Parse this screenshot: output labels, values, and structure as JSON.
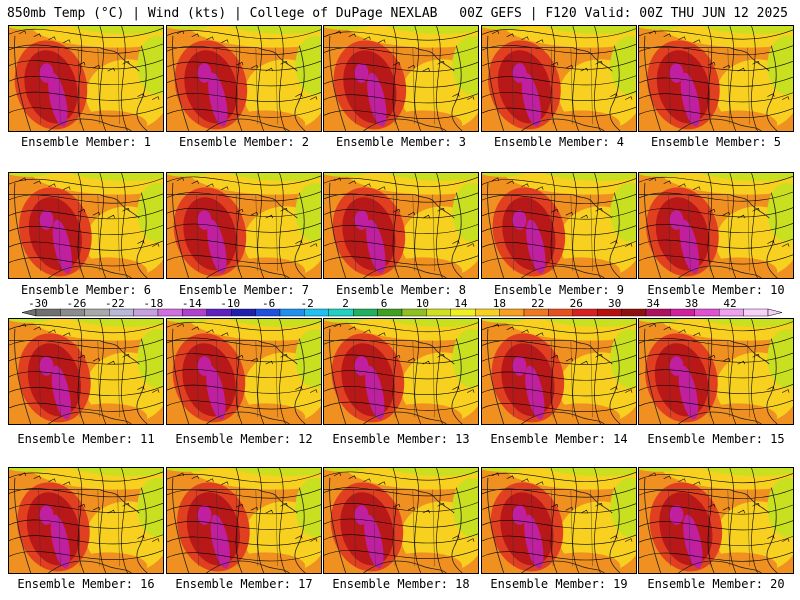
{
  "header": {
    "left": "850mb Temp (°C) | Wind (kts) | College of DuPage NEXLAB",
    "right": "00Z GEFS | F120 Valid: 00Z THU JUN 12 2025"
  },
  "members": [
    "Ensemble Member: 1",
    "Ensemble Member: 2",
    "Ensemble Member: 3",
    "Ensemble Member: 4",
    "Ensemble Member: 5",
    "Ensemble Member: 6",
    "Ensemble Member: 7",
    "Ensemble Member: 8",
    "Ensemble Member: 9",
    "Ensemble Member: 10",
    "Ensemble Member: 11",
    "Ensemble Member: 12",
    "Ensemble Member: 13",
    "Ensemble Member: 14",
    "Ensemble Member: 15",
    "Ensemble Member: 16",
    "Ensemble Member: 17",
    "Ensemble Member: 18",
    "Ensemble Member: 19",
    "Ensemble Member: 20"
  ],
  "colorbar": {
    "labels": [
      "-30",
      "-26",
      "-22",
      "-18",
      "-14",
      "-10",
      "-6",
      "-2",
      "2",
      "6",
      "10",
      "14",
      "18",
      "22",
      "26",
      "30",
      "34",
      "38",
      "42"
    ],
    "colors": [
      "#707070",
      "#8c8c8c",
      "#a8a8a8",
      "#b8b8d8",
      "#c8a0e0",
      "#d070e0",
      "#b040d0",
      "#6020c0",
      "#2020b0",
      "#2050e0",
      "#2090f0",
      "#20c0f0",
      "#20d0c0",
      "#20b060",
      "#40a020",
      "#90c020",
      "#d0e020",
      "#f0f020",
      "#f8d020",
      "#f8a020",
      "#f07820",
      "#e85020",
      "#d82020",
      "#b81010",
      "#901010",
      "#b01060",
      "#d020a0",
      "#e050d0",
      "#f0a0f0",
      "#f8d0f8"
    ]
  },
  "map_colors": {
    "cold": "#20c8c0",
    "cool": "#30a030",
    "mild": "#c8e020",
    "warm": "#f8d020",
    "hot": "#f09020",
    "very_hot": "#e04020",
    "extreme": "#b81818",
    "peak": "#c020a0"
  }
}
